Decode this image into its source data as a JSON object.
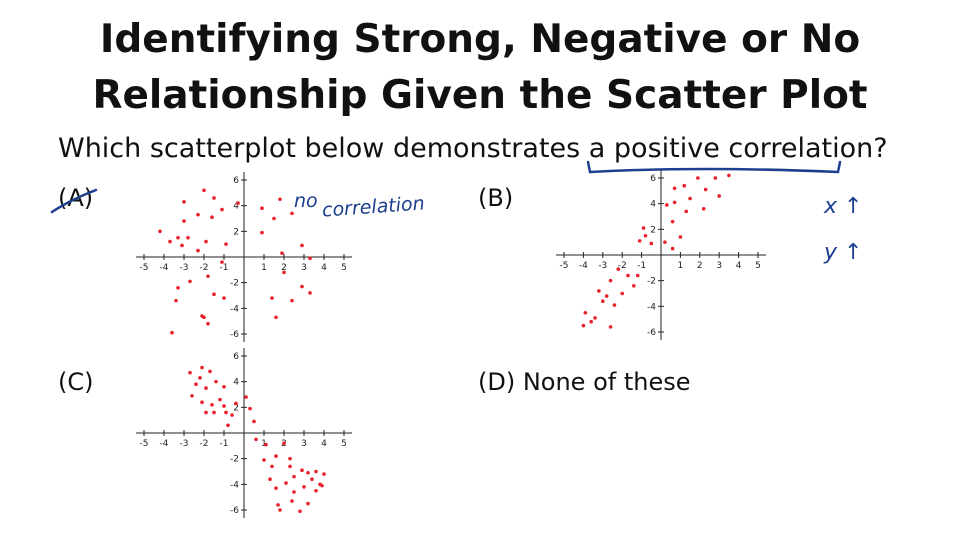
{
  "title_line1": "Identifying Strong, Negative or No",
  "title_line2": "Relationship Given the Scatter Plot",
  "question": "Which scatterplot below demonstrates a positive correlation?",
  "options": {
    "a": "(A)",
    "b": "(B)",
    "c": "(C)",
    "d": "(D) None of these"
  },
  "annotations": {
    "no": "no",
    "correlation": "correlation",
    "x_up": "x ↑",
    "y_up": "y ↑"
  },
  "colors": {
    "points": "#e8202a",
    "ink": "#1c3f8f"
  },
  "chart_data": [
    {
      "type": "scatter",
      "label": "(A)",
      "xlim": [
        -5,
        5
      ],
      "ylim": [
        -6,
        6
      ],
      "x_ticks": [
        -5,
        -4,
        -3,
        -2,
        -1,
        1,
        2,
        3,
        4,
        5
      ],
      "y_ticks": [
        -6,
        -4,
        -2,
        2,
        4,
        6
      ],
      "points": [
        [
          -2,
          5.2
        ],
        [
          -3,
          4.3
        ],
        [
          -1.5,
          4.6
        ],
        [
          -1.1,
          3.7
        ],
        [
          -2.3,
          3.3
        ],
        [
          -0.3,
          4.2
        ],
        [
          -1.6,
          3.1
        ],
        [
          -4.2,
          2.0
        ],
        [
          -3.3,
          1.5
        ],
        [
          -2.8,
          1.5
        ],
        [
          -3.7,
          1.2
        ],
        [
          -1.9,
          1.2
        ],
        [
          -3.1,
          0.9
        ],
        [
          -2.3,
          0.5
        ],
        [
          -0.9,
          1.0
        ],
        [
          -3.0,
          2.8
        ],
        [
          0.9,
          3.8
        ],
        [
          1.5,
          3.0
        ],
        [
          2.4,
          3.4
        ],
        [
          1.8,
          4.5
        ],
        [
          0.9,
          1.9
        ],
        [
          2.9,
          0.9
        ],
        [
          1.9,
          0.3
        ],
        [
          3.3,
          -0.1
        ],
        [
          -1.1,
          -0.4
        ],
        [
          -1.8,
          -1.5
        ],
        [
          -2.7,
          -1.9
        ],
        [
          -3.3,
          -2.4
        ],
        [
          -1.5,
          -2.9
        ],
        [
          -1.0,
          -3.2
        ],
        [
          -3.4,
          -3.4
        ],
        [
          -2.1,
          -4.6
        ],
        [
          -2.0,
          -4.7
        ],
        [
          -1.8,
          -5.2
        ],
        [
          -3.6,
          -5.9
        ],
        [
          2.0,
          -1.2
        ],
        [
          2.9,
          -2.3
        ],
        [
          1.4,
          -3.2
        ],
        [
          2.4,
          -3.4
        ],
        [
          3.3,
          -2.8
        ],
        [
          1.6,
          -4.7
        ]
      ]
    },
    {
      "type": "scatter",
      "label": "(B)",
      "xlim": [
        -5,
        5
      ],
      "ylim": [
        -6,
        6
      ],
      "x_ticks": [
        -5,
        -4,
        -3,
        -2,
        -1,
        1,
        2,
        3,
        4,
        5
      ],
      "y_ticks": [
        -6,
        -4,
        -2,
        2,
        4,
        6
      ],
      "points": [
        [
          3.5,
          6.2
        ],
        [
          2.8,
          6.0
        ],
        [
          1.9,
          6.0
        ],
        [
          1.2,
          5.4
        ],
        [
          0.7,
          5.2
        ],
        [
          2.3,
          5.1
        ],
        [
          3.0,
          4.6
        ],
        [
          1.5,
          4.4
        ],
        [
          0.7,
          4.1
        ],
        [
          0.3,
          3.9
        ],
        [
          2.2,
          3.6
        ],
        [
          1.3,
          3.4
        ],
        [
          0.6,
          2.6
        ],
        [
          -0.9,
          2.1
        ],
        [
          -0.8,
          1.5
        ],
        [
          -1.1,
          1.1
        ],
        [
          0.2,
          1.0
        ],
        [
          -0.5,
          0.9
        ],
        [
          1.0,
          1.4
        ],
        [
          0.6,
          0.5
        ],
        [
          -2.2,
          -1.1
        ],
        [
          -1.7,
          -1.6
        ],
        [
          -1.2,
          -1.6
        ],
        [
          -2.6,
          -2.0
        ],
        [
          -1.4,
          -2.4
        ],
        [
          -3.2,
          -2.8
        ],
        [
          -2.8,
          -3.2
        ],
        [
          -2.0,
          -3.0
        ],
        [
          -3.0,
          -3.6
        ],
        [
          -2.4,
          -3.9
        ],
        [
          -3.9,
          -4.5
        ],
        [
          -3.6,
          -5.2
        ],
        [
          -3.4,
          -4.9
        ],
        [
          -4.0,
          -5.5
        ],
        [
          -2.6,
          -5.6
        ]
      ]
    },
    {
      "type": "scatter",
      "label": "(C)",
      "xlim": [
        -5,
        5
      ],
      "ylim": [
        -6,
        6
      ],
      "x_ticks": [
        -5,
        -4,
        -3,
        -2,
        -1,
        1,
        2,
        3,
        4,
        5
      ],
      "y_ticks": [
        -6,
        -4,
        -2,
        2,
        4,
        6
      ],
      "points": [
        [
          -2.1,
          5.1
        ],
        [
          -2.7,
          4.7
        ],
        [
          -1.7,
          4.8
        ],
        [
          -2.2,
          4.3
        ],
        [
          -1.4,
          4.0
        ],
        [
          -2.4,
          3.8
        ],
        [
          -1.0,
          3.6
        ],
        [
          -1.9,
          3.5
        ],
        [
          -1.2,
          2.6
        ],
        [
          -2.6,
          2.9
        ],
        [
          -2.1,
          2.4
        ],
        [
          -1.6,
          2.2
        ],
        [
          -0.9,
          1.6
        ],
        [
          -1.9,
          1.6
        ],
        [
          -1.0,
          2.1
        ],
        [
          -1.5,
          1.6
        ],
        [
          -0.6,
          1.4
        ],
        [
          -0.4,
          2.3
        ],
        [
          0.1,
          2.8
        ],
        [
          0.3,
          1.9
        ],
        [
          0.5,
          0.9
        ],
        [
          -0.8,
          0.6
        ],
        [
          0.6,
          -0.5
        ],
        [
          1.1,
          -0.9
        ],
        [
          2.0,
          -0.8
        ],
        [
          1.6,
          -1.8
        ],
        [
          1.0,
          -2.1
        ],
        [
          2.3,
          -2.0
        ],
        [
          1.4,
          -2.6
        ],
        [
          2.3,
          -2.6
        ],
        [
          2.9,
          -2.9
        ],
        [
          3.2,
          -3.1
        ],
        [
          3.6,
          -3.0
        ],
        [
          2.5,
          -3.4
        ],
        [
          1.3,
          -3.6
        ],
        [
          3.4,
          -3.6
        ],
        [
          4.0,
          -3.2
        ],
        [
          2.1,
          -3.9
        ],
        [
          3.0,
          -4.2
        ],
        [
          3.8,
          -4.0
        ],
        [
          1.6,
          -4.3
        ],
        [
          2.5,
          -4.6
        ],
        [
          3.6,
          -4.5
        ],
        [
          2.4,
          -5.3
        ],
        [
          3.2,
          -5.5
        ],
        [
          1.7,
          -5.6
        ],
        [
          2.8,
          -6.1
        ],
        [
          1.8,
          -6.0
        ],
        [
          3.9,
          -4.1
        ]
      ]
    }
  ]
}
